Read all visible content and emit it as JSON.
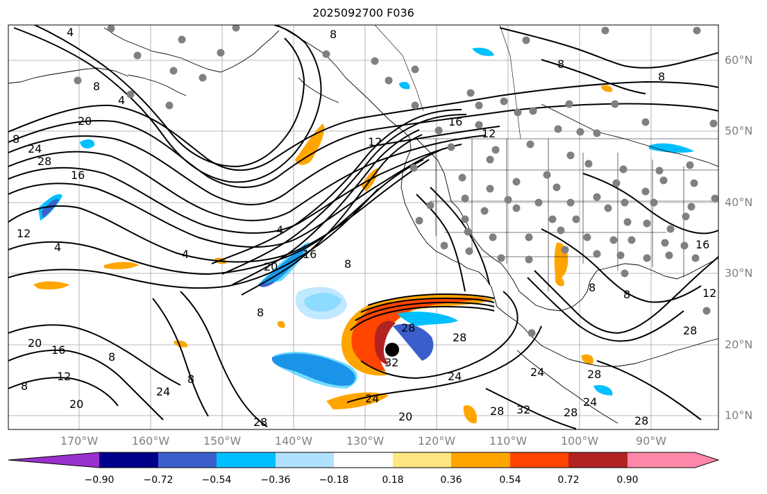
{
  "title": "2025092700 F036",
  "lat_labels": [
    "60°N",
    "50°N",
    "40°N",
    "30°N",
    "20°N",
    "10°N"
  ],
  "lon_labels": [
    "170°W",
    "160°W",
    "150°W",
    "140°W",
    "130°W",
    "120°W",
    "110°W",
    "100°W",
    "90°W"
  ],
  "contour_labels": [
    "4",
    "8",
    "12",
    "16",
    "20",
    "24",
    "28",
    "32"
  ],
  "colorbar": {
    "ticks": [
      "−0.90",
      "−0.72",
      "−0.54",
      "−0.36",
      "−0.18",
      "0.18",
      "0.36",
      "0.54",
      "0.72",
      "0.90"
    ],
    "colors": [
      "#9932cc",
      "#00008b",
      "#3a5fcd",
      "#00bfff",
      "#b0e2ff",
      "#ffffff",
      "#ffe680",
      "#ffa500",
      "#ff4500",
      "#b22222",
      "#ff88aa",
      "#ff88aa"
    ]
  },
  "colors": {
    "orange": "#ffa500",
    "red": "#ff4500",
    "darkred": "#b22222",
    "lightblue": "#b0e2ff",
    "cyan": "#00bfff",
    "blue": "#3a5fcd",
    "yellow": "#ffe680",
    "station": "#808080"
  }
}
